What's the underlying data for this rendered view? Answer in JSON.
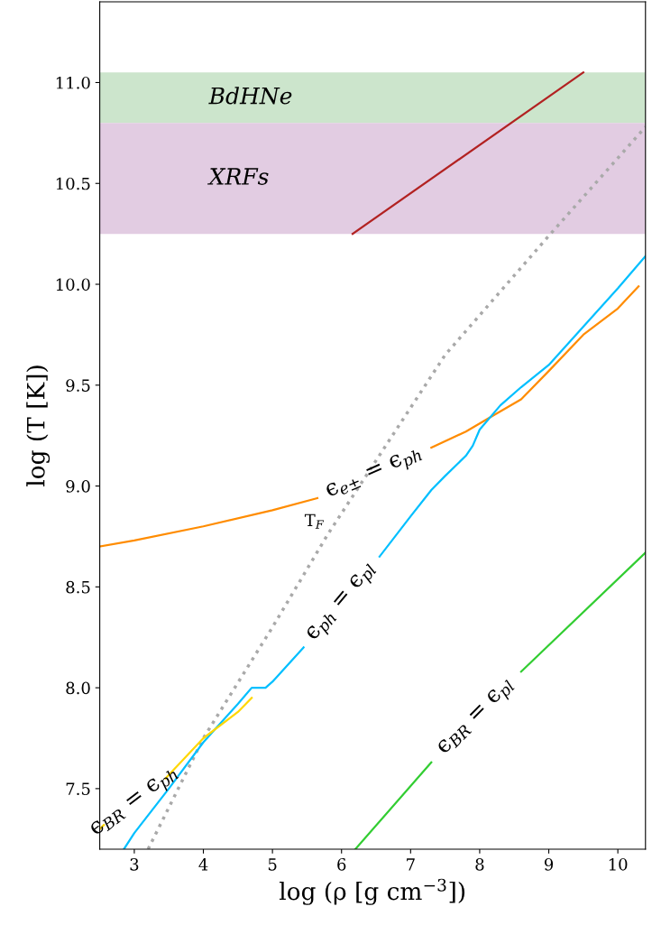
{
  "chart_data": {
    "type": "line",
    "xlabel": "log (ρ [g cm$^{−3}$])",
    "ylabel": "log (T [K])",
    "xlim": [
      2.5,
      10.4
    ],
    "ylim": [
      7.2,
      11.4
    ],
    "xticks": [
      3,
      4,
      5,
      6,
      7,
      8,
      9,
      10
    ],
    "yticks": [
      7.5,
      {
        "value": 8,
        "label": "8.0"
      },
      8.5,
      {
        "value": 9,
        "label": "9.0"
      },
      9.5,
      {
        "value": 10,
        "label": "10.0"
      },
      10.5,
      {
        "value": 11,
        "label": "11.0"
      }
    ],
    "grid": false,
    "legend": false,
    "bands": [
      {
        "axis": "y",
        "from": 10.8,
        "to": 11.05,
        "label": "BdHNe",
        "color": "#cce5cc"
      },
      {
        "axis": "y",
        "from": 10.25,
        "to": 10.8,
        "label": "XRFs",
        "color": "#e2cce2"
      }
    ],
    "series": [
      {
        "color": "#b22222",
        "x": [
          6.16,
          9.5
        ],
        "values": [
          10.25,
          11.05
        ]
      },
      {
        "name": "T$_{F}$",
        "color": "#a9a9a9",
        "line_style": "dotted",
        "x": [
          3.2,
          4,
          5,
          5.8,
          7.5,
          9,
          10.4
        ],
        "values": [
          7.2,
          7.75,
          8.3,
          8.76,
          9.65,
          10.24,
          10.78
        ]
      },
      {
        "name": "ϵ$_{e±}$ = ϵ$_{ph}$",
        "color": "#ff8c00",
        "x": [
          2.5,
          3,
          4,
          5,
          5.65,
          null,
          7.3,
          7.8,
          8.2,
          8.6,
          9,
          9.5,
          10,
          10.3
        ],
        "values": [
          8.7,
          8.73,
          8.8,
          8.88,
          8.94,
          null,
          9.19,
          9.27,
          9.35,
          9.43,
          9.57,
          9.75,
          9.88,
          9.99
        ]
      },
      {
        "name": "ϵ$_{ph}$ = ϵ$_{pl}$",
        "color": "#00bfff",
        "x": [
          2.85,
          3,
          3.5,
          4,
          4.5,
          4.7,
          4.9,
          5,
          5.45,
          null,
          6.55,
          7,
          7.3,
          7.5,
          7.8,
          7.9,
          8,
          8.3,
          8.6,
          9,
          9.5,
          10,
          10.4
        ],
        "values": [
          7.2,
          7.28,
          7.5,
          7.73,
          7.92,
          8.0,
          8.0,
          8.03,
          8.2,
          null,
          8.65,
          8.85,
          8.98,
          9.05,
          9.15,
          9.2,
          9.28,
          9.4,
          9.49,
          9.6,
          9.79,
          9.98,
          10.14
        ]
      },
      {
        "name": "ϵ$_{BR}$ = ϵ$_{ph}$",
        "color": "#ffd700",
        "x": [
          2.5,
          2.56,
          null,
          3.45,
          4,
          4.5,
          4.7
        ],
        "values": [
          7.3,
          7.32,
          null,
          7.55,
          7.75,
          7.88,
          7.95
        ]
      },
      {
        "name": "ϵ$_{BR}$ = ϵ$_{pl}$",
        "color": "#32cd32",
        "x": [
          6.2,
          7.3,
          null,
          8.6,
          10.4
        ],
        "values": [
          7.2,
          7.63,
          null,
          8.08,
          8.67
        ]
      }
    ]
  }
}
